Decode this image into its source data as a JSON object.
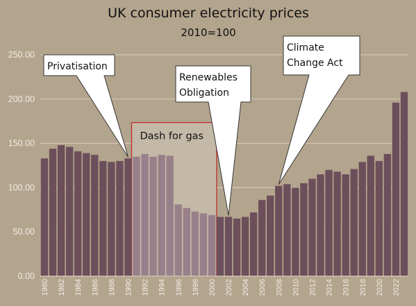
{
  "chart_data": {
    "type": "bar",
    "title": "UK consumer electricity prices",
    "subtitle": "2010=100",
    "xlabel": "",
    "ylabel": "",
    "ylim": [
      0,
      250
    ],
    "yticks": [
      "0.00",
      "50.00",
      "100.00",
      "150.00",
      "200.00",
      "250.00"
    ],
    "grid": true,
    "legend": "none",
    "colors": {
      "bar": "#6c4f5b",
      "bar_highlight": "#98808a",
      "background": "#b3a48d",
      "region_fill": "#c4b9a6",
      "region_border": "#c0302c",
      "grid": "#d8cfc0",
      "tick_text": "#f2ede4"
    },
    "x": [
      1980,
      1981,
      1982,
      1983,
      1984,
      1985,
      1986,
      1987,
      1988,
      1989,
      1990,
      1991,
      1992,
      1993,
      1994,
      1995,
      1996,
      1997,
      1998,
      1999,
      2000,
      2001,
      2002,
      2003,
      2004,
      2005,
      2006,
      2007,
      2008,
      2009,
      2010,
      2011,
      2012,
      2013,
      2014,
      2015,
      2016,
      2017,
      2018,
      2019,
      2020,
      2021,
      2022,
      2023
    ],
    "xtick_labels": [
      "1980",
      "1982",
      "1984",
      "1986",
      "1988",
      "1990",
      "1992",
      "1994",
      "1996",
      "1998",
      "2000",
      "2002",
      "2004",
      "2006",
      "2008",
      "2010",
      "2012",
      "2014",
      "2016",
      "2018",
      "2020",
      "2022"
    ],
    "values": [
      133,
      144,
      148,
      146,
      141,
      139,
      137,
      130,
      129,
      130,
      133,
      135,
      138,
      135,
      137,
      136,
      81,
      77,
      73,
      71,
      69,
      67,
      67,
      65,
      67,
      72,
      86,
      91,
      102,
      104,
      100,
      105,
      110,
      115,
      120,
      118,
      115,
      121,
      129,
      136,
      130,
      138,
      196,
      208
    ],
    "highlight_range": [
      1991,
      2000
    ],
    "annotations": [
      {
        "label": "Privatisation",
        "x": 1990,
        "y": 133
      },
      {
        "label": "Renewables\nObligation",
        "x": 2002,
        "y": 67
      },
      {
        "label": "Climate\nChange Act",
        "x": 2008,
        "y": 102
      }
    ],
    "region_label": "Dash for gas"
  }
}
